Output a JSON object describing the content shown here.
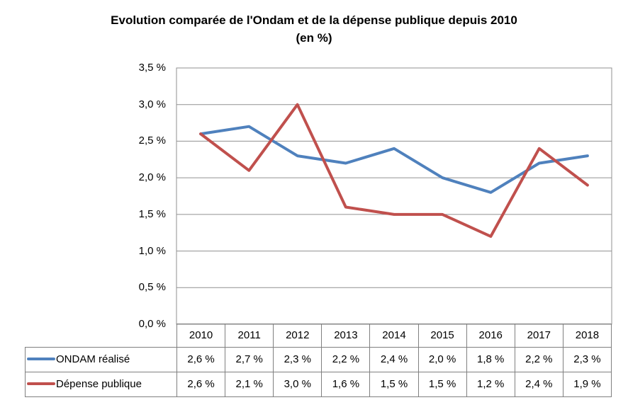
{
  "title": {
    "line1": "Evolution comparée de l'Ondam et de la dépense publique depuis 2010",
    "line2": "(en %)"
  },
  "chart_data": {
    "type": "line",
    "categories": [
      "2010",
      "2011",
      "2012",
      "2013",
      "2014",
      "2015",
      "2016",
      "2017",
      "2018"
    ],
    "series": [
      {
        "name": "ONDAM réalisé",
        "color": "#4F81BD",
        "values": [
          2.6,
          2.7,
          2.3,
          2.2,
          2.4,
          2.0,
          1.8,
          2.2,
          2.3
        ],
        "display_values": [
          "2,6 %",
          "2,7 %",
          "2,3 %",
          "2,2 %",
          "2,4 %",
          "2,0 %",
          "1,8 %",
          "2,2 %",
          "2,3 %"
        ]
      },
      {
        "name": "Dépense publique",
        "color": "#C0504D",
        "values": [
          2.6,
          2.1,
          3.0,
          1.6,
          1.5,
          1.5,
          1.2,
          2.4,
          1.9
        ],
        "display_values": [
          "2,6 %",
          "2,1 %",
          "3,0 %",
          "1,6 %",
          "1,5 %",
          "1,5 %",
          "1,2 %",
          "2,4 %",
          "1,9 %"
        ]
      }
    ],
    "title": "Evolution comparée de l'Ondam et de la dépense publique depuis 2010 (en %)",
    "xlabel": "",
    "ylabel": "",
    "ylim": [
      0,
      3.5
    ],
    "ytick_step": 0.5,
    "ytick_labels": [
      "0,0 %",
      "0,5 %",
      "1,0 %",
      "1,5 %",
      "2,0 %",
      "2,5 %",
      "3,0 %",
      "3,5 %"
    ],
    "grid": true,
    "legend_position": "table-left"
  },
  "colors": {
    "grid": "#919191",
    "table_border": "#808080",
    "series_blue": "#4F81BD",
    "series_red": "#C0504D",
    "background": "#FFFFFF",
    "text": "#000000"
  }
}
